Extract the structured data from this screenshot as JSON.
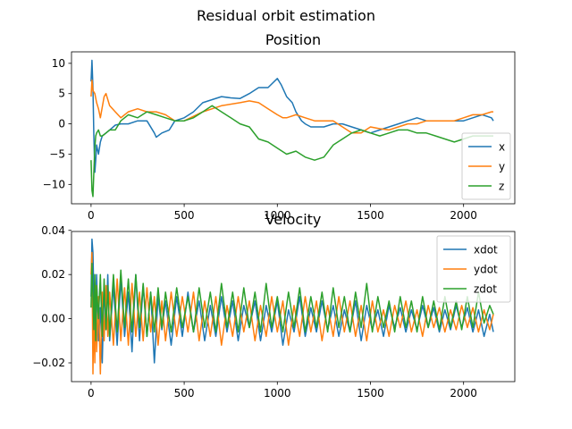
{
  "figure": {
    "suptitle": "Residual orbit estimation"
  },
  "chart_data": [
    {
      "type": "line",
      "title": "Position",
      "xlabel": "",
      "ylabel": "",
      "xlim": [
        -105,
        2275
      ],
      "ylim": [
        -13.2,
        11.9
      ],
      "xticks": [
        0,
        500,
        1000,
        1500,
        2000
      ],
      "xtick_labels": [
        "0",
        "500",
        "1000",
        "1500",
        "2000"
      ],
      "yticks": [
        -10,
        -5,
        0,
        5,
        10
      ],
      "ytick_labels": [
        "−10",
        "−5",
        "0",
        "5",
        "10"
      ],
      "legend": "lower-right",
      "grid": false,
      "series": [
        {
          "name": "x",
          "color": "#1f77b4",
          "x": [
            0,
            5,
            10,
            15,
            20,
            25,
            30,
            40,
            50,
            60,
            80,
            100,
            130,
            160,
            200,
            250,
            300,
            340,
            350,
            380,
            420,
            450,
            500,
            550,
            600,
            650,
            700,
            750,
            800,
            850,
            900,
            950,
            1000,
            1020,
            1050,
            1080,
            1100,
            1130,
            1150,
            1180,
            1200,
            1250,
            1300,
            1350,
            1400,
            1450,
            1500,
            1550,
            1600,
            1650,
            1700,
            1750,
            1800,
            1850,
            1900,
            1950,
            2000,
            2050,
            2100,
            2150,
            2160
          ],
          "y": [
            7.0,
            10.5,
            6.0,
            -2.0,
            -8.0,
            -6.0,
            -3.5,
            -5.0,
            -3.0,
            -2.0,
            -1.5,
            -1.0,
            -0.2,
            0.0,
            0.0,
            0.5,
            0.5,
            -1.5,
            -2.2,
            -1.5,
            -1.0,
            0.5,
            1.0,
            2.0,
            3.5,
            4.0,
            4.5,
            4.3,
            4.2,
            5.0,
            6.0,
            6.0,
            7.5,
            6.5,
            4.5,
            3.5,
            2.0,
            0.5,
            0.0,
            -0.5,
            -0.5,
            -0.5,
            0.0,
            0.0,
            -0.5,
            -1.0,
            -1.5,
            -1.0,
            -0.5,
            0.0,
            0.5,
            1.0,
            0.5,
            0.5,
            0.5,
            0.5,
            0.5,
            1.0,
            1.5,
            1.0,
            0.5
          ]
        },
        {
          "name": "y",
          "color": "#ff7f0e",
          "x": [
            0,
            5,
            10,
            20,
            30,
            40,
            50,
            70,
            80,
            100,
            130,
            160,
            200,
            250,
            300,
            350,
            400,
            450,
            500,
            600,
            700,
            800,
            850,
            900,
            950,
            1000,
            1030,
            1050,
            1100,
            1150,
            1200,
            1250,
            1300,
            1350,
            1400,
            1450,
            1500,
            1550,
            1600,
            1650,
            1700,
            1750,
            1800,
            1850,
            1900,
            1950,
            2000,
            2050,
            2100,
            2150,
            2160
          ],
          "y": [
            4.5,
            7.2,
            5.5,
            5.0,
            3.5,
            2.5,
            1.0,
            4.5,
            5.0,
            3.0,
            2.0,
            1.0,
            2.0,
            2.5,
            2.0,
            2.0,
            1.5,
            0.5,
            0.5,
            2.0,
            3.0,
            3.5,
            3.8,
            3.5,
            2.5,
            1.5,
            1.0,
            1.0,
            1.5,
            1.0,
            0.5,
            0.5,
            0.5,
            -0.5,
            -1.5,
            -1.5,
            -0.5,
            -0.8,
            -1.0,
            -0.5,
            0.0,
            0.0,
            0.5,
            0.5,
            0.5,
            0.5,
            1.0,
            1.5,
            1.5,
            2.0,
            2.0
          ]
        },
        {
          "name": "z",
          "color": "#2ca02c",
          "x": [
            0,
            5,
            10,
            15,
            20,
            25,
            30,
            40,
            50,
            60,
            80,
            100,
            130,
            160,
            200,
            250,
            300,
            350,
            400,
            450,
            500,
            550,
            600,
            650,
            700,
            750,
            800,
            850,
            900,
            950,
            1000,
            1050,
            1100,
            1150,
            1200,
            1250,
            1300,
            1350,
            1400,
            1450,
            1500,
            1550,
            1600,
            1650,
            1700,
            1750,
            1800,
            1850,
            1900,
            1950,
            2000,
            2050,
            2100,
            2150,
            2160
          ],
          "y": [
            -6.0,
            -11.0,
            -12.0,
            -8.0,
            -4.0,
            -2.0,
            -1.5,
            -1.0,
            -2.0,
            -2.0,
            -1.5,
            -1.0,
            -1.0,
            0.5,
            1.5,
            1.0,
            2.0,
            1.5,
            1.0,
            0.5,
            0.5,
            1.0,
            2.0,
            3.0,
            2.0,
            1.0,
            0.0,
            -0.5,
            -2.5,
            -3.0,
            -4.0,
            -5.0,
            -4.5,
            -5.5,
            -6.0,
            -5.5,
            -3.5,
            -2.5,
            -1.5,
            -1.0,
            -1.5,
            -2.0,
            -1.5,
            -1.0,
            -1.0,
            -1.5,
            -1.5,
            -2.0,
            -2.5,
            -3.0,
            -2.5,
            -2.0,
            -2.0,
            -2.0,
            -2.0
          ]
        }
      ]
    },
    {
      "type": "line",
      "title": "Velocity",
      "xlabel": "",
      "ylabel": "",
      "xlim": [
        -105,
        2275
      ],
      "ylim": [
        -0.0285,
        0.0395
      ],
      "xticks": [
        0,
        500,
        1000,
        1500,
        2000
      ],
      "xtick_labels": [
        "0",
        "500",
        "1000",
        "1500",
        "2000"
      ],
      "yticks": [
        -0.02,
        0.0,
        0.02,
        0.04
      ],
      "ytick_labels": [
        "−0.02",
        "0.00",
        "0.02",
        "0.04"
      ],
      "legend": "upper-right",
      "grid": false,
      "series": [
        {
          "name": "xdot",
          "color": "#1f77b4",
          "x": [
            0,
            5,
            10,
            15,
            20,
            25,
            30,
            40,
            50,
            60,
            70,
            80,
            90,
            100,
            120,
            140,
            160,
            180,
            200,
            220,
            240,
            260,
            280,
            300,
            320,
            340,
            360,
            380,
            400,
            430,
            460,
            490,
            520,
            550,
            580,
            610,
            640,
            670,
            700,
            730,
            760,
            790,
            820,
            850,
            880,
            910,
            940,
            970,
            1000,
            1030,
            1060,
            1090,
            1120,
            1150,
            1180,
            1210,
            1240,
            1270,
            1300,
            1330,
            1360,
            1390,
            1420,
            1450,
            1480,
            1510,
            1540,
            1570,
            1600,
            1630,
            1660,
            1690,
            1720,
            1750,
            1780,
            1810,
            1840,
            1870,
            1900,
            1930,
            1960,
            1990,
            2020,
            2050,
            2080,
            2110,
            2140,
            2160
          ],
          "y": [
            0.01,
            0.036,
            0.03,
            0.01,
            -0.015,
            0.0,
            0.02,
            -0.01,
            0.005,
            -0.02,
            0.015,
            -0.005,
            0.02,
            -0.01,
            0.015,
            -0.012,
            0.018,
            -0.008,
            0.012,
            -0.015,
            0.02,
            -0.01,
            0.015,
            -0.008,
            0.012,
            -0.02,
            0.01,
            -0.005,
            0.008,
            -0.012,
            0.01,
            -0.008,
            0.012,
            -0.006,
            0.008,
            -0.01,
            0.006,
            -0.008,
            0.01,
            -0.006,
            0.008,
            -0.01,
            0.006,
            -0.004,
            0.008,
            -0.01,
            0.006,
            -0.006,
            0.008,
            -0.012,
            0.004,
            -0.006,
            0.01,
            -0.008,
            0.005,
            -0.006,
            0.008,
            -0.005,
            0.006,
            -0.008,
            0.004,
            -0.006,
            0.008,
            -0.01,
            0.006,
            -0.005,
            0.004,
            -0.008,
            0.006,
            -0.004,
            0.005,
            -0.006,
            0.004,
            -0.005,
            0.006,
            -0.004,
            0.005,
            -0.006,
            0.004,
            -0.005,
            0.006,
            -0.004,
            0.005,
            -0.006,
            0.004,
            -0.008,
            0.002,
            -0.006
          ]
        },
        {
          "name": "ydot",
          "color": "#ff7f0e",
          "x": [
            0,
            5,
            10,
            15,
            20,
            25,
            30,
            40,
            50,
            60,
            70,
            80,
            90,
            100,
            120,
            140,
            160,
            180,
            200,
            220,
            240,
            260,
            280,
            300,
            320,
            340,
            360,
            380,
            400,
            430,
            460,
            490,
            520,
            550,
            580,
            610,
            640,
            670,
            700,
            730,
            760,
            790,
            820,
            850,
            880,
            910,
            940,
            970,
            1000,
            1030,
            1060,
            1090,
            1120,
            1150,
            1180,
            1210,
            1240,
            1270,
            1300,
            1330,
            1360,
            1390,
            1420,
            1450,
            1480,
            1510,
            1540,
            1570,
            1600,
            1630,
            1660,
            1690,
            1720,
            1750,
            1780,
            1810,
            1840,
            1870,
            1900,
            1930,
            1960,
            1990,
            2020,
            2050,
            2080,
            2110,
            2140,
            2160
          ],
          "y": [
            0.02,
            0.03,
            -0.025,
            0.005,
            -0.02,
            0.015,
            -0.015,
            0.01,
            -0.025,
            0.012,
            -0.01,
            0.015,
            -0.008,
            0.012,
            -0.012,
            0.018,
            -0.01,
            0.014,
            -0.012,
            0.016,
            -0.008,
            0.012,
            -0.01,
            0.014,
            -0.006,
            0.01,
            -0.012,
            0.008,
            -0.01,
            0.012,
            -0.008,
            0.01,
            -0.006,
            0.012,
            -0.01,
            0.008,
            -0.008,
            0.01,
            -0.012,
            0.006,
            -0.008,
            0.01,
            -0.006,
            0.008,
            -0.01,
            0.006,
            -0.008,
            0.01,
            -0.006,
            0.008,
            -0.012,
            0.006,
            -0.008,
            0.01,
            -0.006,
            0.008,
            -0.01,
            0.006,
            -0.008,
            0.01,
            -0.006,
            0.008,
            -0.008,
            0.006,
            -0.01,
            0.008,
            -0.006,
            0.004,
            -0.008,
            0.006,
            -0.004,
            0.008,
            -0.006,
            0.004,
            -0.008,
            0.006,
            -0.004,
            0.005,
            -0.006,
            0.004,
            -0.005,
            0.006,
            -0.004,
            0.005,
            -0.006,
            0.004,
            -0.005,
            0.002
          ]
        },
        {
          "name": "zdot",
          "color": "#2ca02c",
          "x": [
            0,
            5,
            10,
            15,
            20,
            25,
            30,
            40,
            50,
            60,
            70,
            80,
            90,
            100,
            120,
            140,
            160,
            180,
            200,
            220,
            240,
            260,
            280,
            300,
            320,
            340,
            360,
            380,
            400,
            430,
            460,
            490,
            520,
            550,
            580,
            610,
            640,
            670,
            700,
            730,
            760,
            790,
            820,
            850,
            880,
            910,
            940,
            970,
            1000,
            1030,
            1060,
            1090,
            1120,
            1150,
            1180,
            1210,
            1240,
            1270,
            1300,
            1330,
            1360,
            1390,
            1420,
            1450,
            1480,
            1510,
            1540,
            1570,
            1600,
            1630,
            1660,
            1690,
            1720,
            1750,
            1780,
            1810,
            1840,
            1870,
            1900,
            1930,
            1960,
            1990,
            2020,
            2050,
            2080,
            2110,
            2140,
            2160
          ],
          "y": [
            0.005,
            0.025,
            0.01,
            -0.005,
            0.02,
            -0.01,
            0.015,
            0.0,
            0.02,
            -0.008,
            0.018,
            -0.005,
            0.015,
            -0.008,
            0.02,
            -0.006,
            0.022,
            -0.004,
            0.018,
            -0.006,
            0.02,
            -0.004,
            0.016,
            -0.008,
            0.012,
            -0.006,
            0.014,
            -0.004,
            0.012,
            -0.006,
            0.014,
            -0.004,
            0.01,
            -0.006,
            0.014,
            -0.004,
            0.012,
            -0.006,
            0.016,
            -0.004,
            0.012,
            -0.006,
            0.014,
            -0.004,
            0.012,
            -0.006,
            0.016,
            -0.004,
            0.01,
            -0.006,
            0.012,
            -0.004,
            0.014,
            -0.006,
            0.01,
            -0.004,
            0.012,
            -0.006,
            0.014,
            -0.004,
            0.01,
            -0.006,
            0.012,
            -0.004,
            0.016,
            -0.006,
            0.01,
            -0.004,
            0.008,
            -0.006,
            0.01,
            -0.004,
            0.008,
            -0.006,
            0.01,
            -0.004,
            0.008,
            -0.005,
            0.01,
            -0.004,
            0.008,
            -0.005,
            0.01,
            -0.004,
            0.012,
            -0.002,
            0.006,
            0.002
          ]
        }
      ]
    }
  ]
}
